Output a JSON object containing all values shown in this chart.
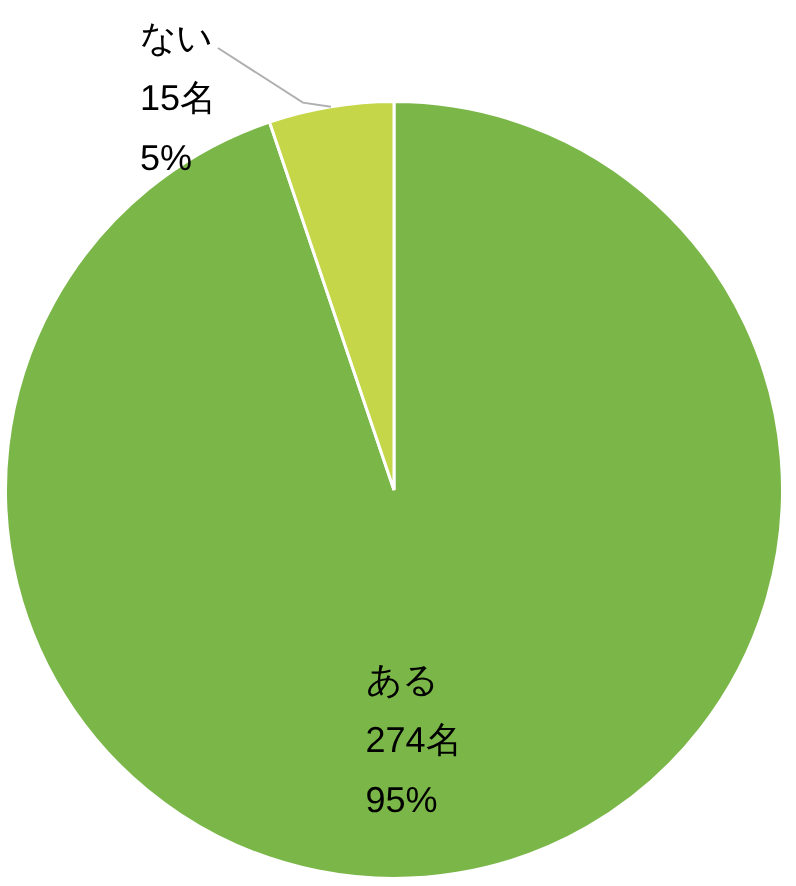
{
  "chart_data": {
    "type": "pie",
    "categories": [
      "ある",
      "ない"
    ],
    "values": [
      274,
      15
    ],
    "colors": [
      "#7ab648",
      "#c5d649"
    ],
    "value_labels": [
      "274名\n95%",
      "15名\n5%"
    ],
    "legend": false
  }
}
